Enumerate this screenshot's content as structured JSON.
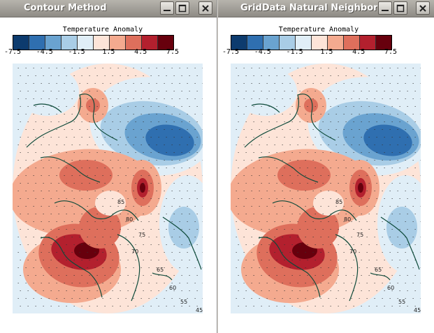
{
  "left_window": {
    "title": "Contour Method"
  },
  "right_window": {
    "title": "GridData Natural Neighbor"
  },
  "colorbar": {
    "title": "Temperature Anomaly",
    "tick_labels": [
      "-7.5",
      "-4.5",
      "-1.5",
      "1.5",
      "4.5",
      "7.5"
    ],
    "colors": [
      "#0d3b6e",
      "#2f6fb0",
      "#6aa3d0",
      "#a9cde6",
      "#e0eef7",
      "#fde4d8",
      "#f4aa8f",
      "#de6f5c",
      "#b3202e",
      "#67000d"
    ]
  },
  "map_labels": [
    "85",
    "80",
    "75",
    "70",
    "65",
    "60",
    "55",
    "45"
  ]
}
